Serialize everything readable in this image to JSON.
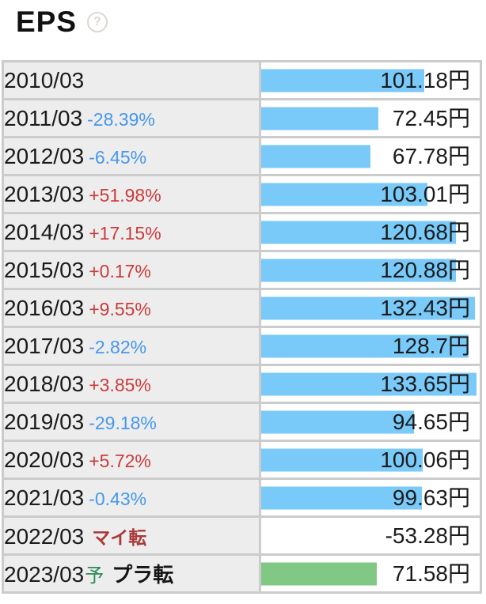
{
  "header": {
    "title": "EPS",
    "help_icon_glyph": "?"
  },
  "colors": {
    "bar_blue": "#79c9f9",
    "bar_green": "#80c883",
    "label_bg": "#ededed",
    "border_gray": "#cccccc",
    "neg_blue": "#4697ec",
    "pos_red": "#cc3b3b",
    "turn_red": "#a93a3a",
    "forecast_green": "#2e8b57",
    "help_gray": "#dcd8cf"
  },
  "chart_data": {
    "type": "bar",
    "orientation": "horizontal",
    "title": "EPS",
    "unit": "円",
    "value_axis_max": 133.65,
    "grid": false,
    "legend": false,
    "rows": [
      {
        "period": "2010/03",
        "change": "",
        "change_type": "flat",
        "value": 101.18,
        "value_label": "101.18円",
        "bar": "blue"
      },
      {
        "period": "2011/03",
        "change": "-28.39%",
        "change_type": "down",
        "value": 72.45,
        "value_label": "72.45円",
        "bar": "blue"
      },
      {
        "period": "2012/03",
        "change": "-6.45%",
        "change_type": "down",
        "value": 67.78,
        "value_label": "67.78円",
        "bar": "blue"
      },
      {
        "period": "2013/03",
        "change": "+51.98%",
        "change_type": "up",
        "value": 103.01,
        "value_label": "103.01円",
        "bar": "blue"
      },
      {
        "period": "2014/03",
        "change": "+17.15%",
        "change_type": "up",
        "value": 120.68,
        "value_label": "120.68円",
        "bar": "blue"
      },
      {
        "period": "2015/03",
        "change": "+0.17%",
        "change_type": "up",
        "value": 120.88,
        "value_label": "120.88円",
        "bar": "blue"
      },
      {
        "period": "2016/03",
        "change": "+9.55%",
        "change_type": "up",
        "value": 132.43,
        "value_label": "132.43円",
        "bar": "blue"
      },
      {
        "period": "2017/03",
        "change": "-2.82%",
        "change_type": "down",
        "value": 128.7,
        "value_label": "128.7円",
        "bar": "blue"
      },
      {
        "period": "2018/03",
        "change": "+3.85%",
        "change_type": "up",
        "value": 133.65,
        "value_label": "133.65円",
        "bar": "blue"
      },
      {
        "period": "2019/03",
        "change": "-29.18%",
        "change_type": "down",
        "value": 94.65,
        "value_label": "94.65円",
        "bar": "blue"
      },
      {
        "period": "2020/03",
        "change": "+5.72%",
        "change_type": "up",
        "value": 100.06,
        "value_label": "100.06円",
        "bar": "blue"
      },
      {
        "period": "2021/03",
        "change": "-0.43%",
        "change_type": "down",
        "value": 99.63,
        "value_label": "99.63円",
        "bar": "blue"
      },
      {
        "period": "2022/03",
        "change": "マイ転",
        "change_type": "down_turn",
        "value": -53.28,
        "value_label": "-53.28円",
        "bar": "none"
      },
      {
        "period": "2023/03",
        "forecast_mark": "予",
        "change": "プラ転",
        "change_type": "up_turn",
        "value": 71.58,
        "value_label": "71.58円",
        "bar": "green"
      }
    ]
  }
}
